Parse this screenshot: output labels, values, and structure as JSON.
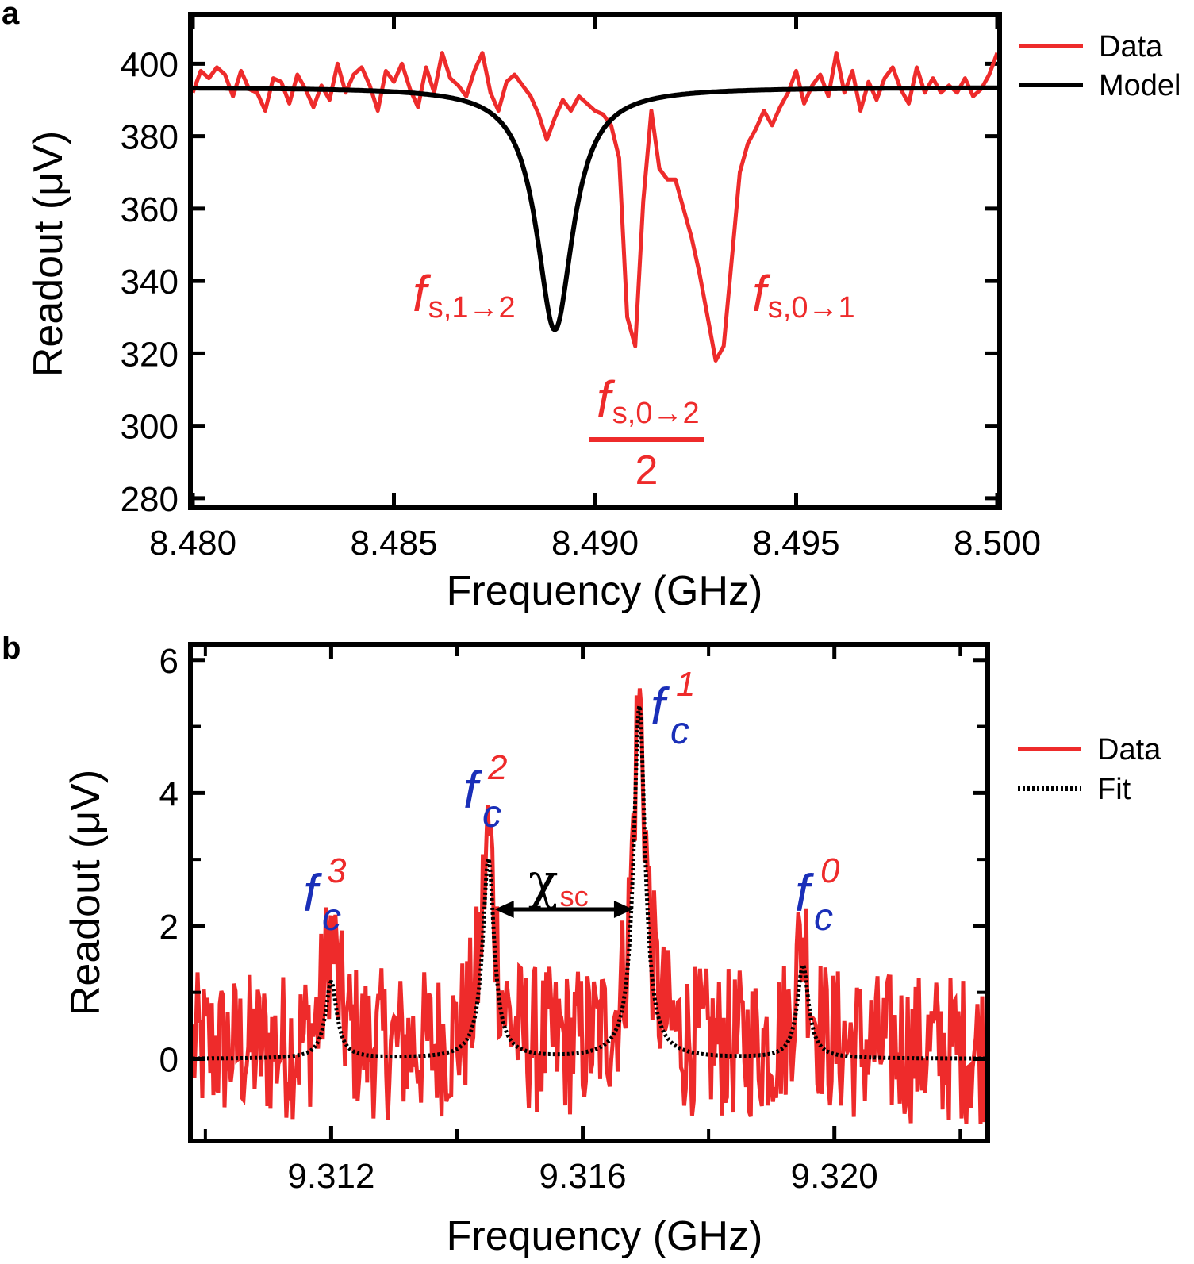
{
  "panels": {
    "a": {
      "letter": "a",
      "legend": [
        {
          "label": "Data",
          "color": "#ee2b2b",
          "style": "solid"
        },
        {
          "label": "Model",
          "color": "#000000",
          "style": "solid"
        }
      ],
      "annotations": {
        "peak_left": {
          "main": "f",
          "sub": "s,1→2"
        },
        "peak_right": {
          "main": "f",
          "sub": "s,0→1"
        },
        "fraction": {
          "main": "f",
          "sub": "s,0→2",
          "denominator": "2"
        }
      }
    },
    "b": {
      "letter": "b",
      "legend": [
        {
          "label": "Data",
          "color": "#ee2b2b",
          "style": "solid"
        },
        {
          "label": "Fit",
          "color": "#000000",
          "style": "dotted"
        }
      ],
      "annotations": {
        "peaks": [
          {
            "main": "f",
            "sub": "c",
            "sup": "3"
          },
          {
            "main": "f",
            "sub": "c",
            "sup": "2"
          },
          {
            "main": "f",
            "sub": "c",
            "sup": "1"
          },
          {
            "main": "f",
            "sub": "c",
            "sup": "0"
          }
        ],
        "chi": {
          "main": "χ",
          "sub": "sc"
        }
      }
    }
  },
  "chart_data": [
    {
      "type": "line",
      "xlabel": "Frequency (GHz)",
      "ylabel": "Readout (μV)",
      "xlim": [
        8.48,
        8.5
      ],
      "ylim": [
        278,
        413
      ],
      "xticks": [
        "8.480",
        "8.485",
        "8.490",
        "8.495",
        "8.500"
      ],
      "yticks": [
        "280",
        "300",
        "320",
        "340",
        "360",
        "380",
        "400"
      ],
      "legend_position": "outside-right-top",
      "grid": false,
      "series": [
        {
          "name": "Data",
          "color": "#ee2b2b",
          "x": [
            8.48,
            8.4802,
            8.4804,
            8.4806,
            8.4808,
            8.481,
            8.4812,
            8.4814,
            8.4816,
            8.4818,
            8.482,
            8.4822,
            8.4824,
            8.4826,
            8.4828,
            8.483,
            8.4832,
            8.4834,
            8.4836,
            8.4838,
            8.484,
            8.4842,
            8.4844,
            8.4846,
            8.4848,
            8.485,
            8.4852,
            8.4854,
            8.4856,
            8.4858,
            8.486,
            8.4862,
            8.4864,
            8.4866,
            8.4868,
            8.487,
            8.4872,
            8.4874,
            8.4876,
            8.4878,
            8.488,
            8.4882,
            8.4884,
            8.4886,
            8.4888,
            8.489,
            8.4892,
            8.4894,
            8.4896,
            8.4898,
            8.49,
            8.4902,
            8.4904,
            8.4906,
            8.4908,
            8.491,
            8.4912,
            8.4914,
            8.4916,
            8.4918,
            8.492,
            8.4922,
            8.4924,
            8.4926,
            8.4928,
            8.493,
            8.4932,
            8.4934,
            8.4936,
            8.4938,
            8.494,
            8.4942,
            8.4944,
            8.4946,
            8.4948,
            8.495,
            8.4952,
            8.4954,
            8.4956,
            8.4958,
            8.496,
            8.4962,
            8.4964,
            8.4966,
            8.4968,
            8.497,
            8.4972,
            8.4974,
            8.4976,
            8.4978,
            8.498,
            8.4982,
            8.4984,
            8.4986,
            8.4988,
            8.499,
            8.4992,
            8.4994,
            8.4996,
            8.4998,
            8.5
          ],
          "values": [
            392,
            398,
            396,
            399,
            397,
            391,
            398,
            393,
            392,
            387,
            396,
            395,
            389,
            397,
            393,
            388,
            394,
            390,
            400,
            392,
            397,
            399,
            394,
            387,
            398,
            395,
            400,
            393,
            388,
            399,
            392,
            403,
            396,
            394,
            391,
            398,
            403,
            392,
            387,
            395,
            397,
            394,
            391,
            386,
            379,
            385,
            390,
            387,
            391,
            389,
            387,
            386,
            383,
            374,
            330,
            322,
            362,
            387,
            371,
            368,
            368,
            360,
            352,
            342,
            330,
            318,
            322,
            346,
            370,
            378,
            382,
            387,
            383,
            388,
            392,
            398,
            389,
            394,
            397,
            391,
            403,
            392,
            398,
            387,
            395,
            390,
            396,
            399,
            393,
            389,
            399,
            392,
            396,
            392,
            394,
            392,
            396,
            391,
            393,
            397,
            403
          ]
        },
        {
          "name": "Model",
          "color": "#000000",
          "model": {
            "form": "lorentzian_dip",
            "center": 8.489,
            "hwhm": 0.00055,
            "baseline": 393.5,
            "depth": 67
          }
        }
      ]
    },
    {
      "type": "line",
      "xlabel": "Frequency (GHz)",
      "ylabel": "Readout (μV)",
      "xlim": [
        9.3098,
        9.3224
      ],
      "ylim": [
        -1.2,
        6.2
      ],
      "xticks": [
        "9.312",
        "9.316",
        "9.320"
      ],
      "yticks": [
        "0",
        "2",
        "4",
        "6"
      ],
      "legend_position": "outside-right-middle",
      "grid": false,
      "peaks": [
        {
          "label": "f_c^3",
          "x": 9.312,
          "data_max": 1.85,
          "fit_max": 1.15
        },
        {
          "label": "f_c^2",
          "x": 9.3145,
          "data_max": 3.35,
          "fit_max": 3.0
        },
        {
          "label": "f_c^1",
          "x": 9.3169,
          "data_max": 5.3,
          "fit_max": 5.3
        },
        {
          "label": "f_c^0",
          "x": 9.3195,
          "data_max": 1.9,
          "fit_max": 1.4
        }
      ],
      "chi_sc": {
        "from": 9.3145,
        "to": 9.3169,
        "y": 2.25
      },
      "series": [
        {
          "name": "Data",
          "color": "#ee2b2b",
          "noise_range": [
            -1.2,
            1.6
          ],
          "points": 500
        },
        {
          "name": "Fit",
          "color": "#000000",
          "style": "dotted",
          "hwhm": 0.00011
        }
      ]
    }
  ]
}
